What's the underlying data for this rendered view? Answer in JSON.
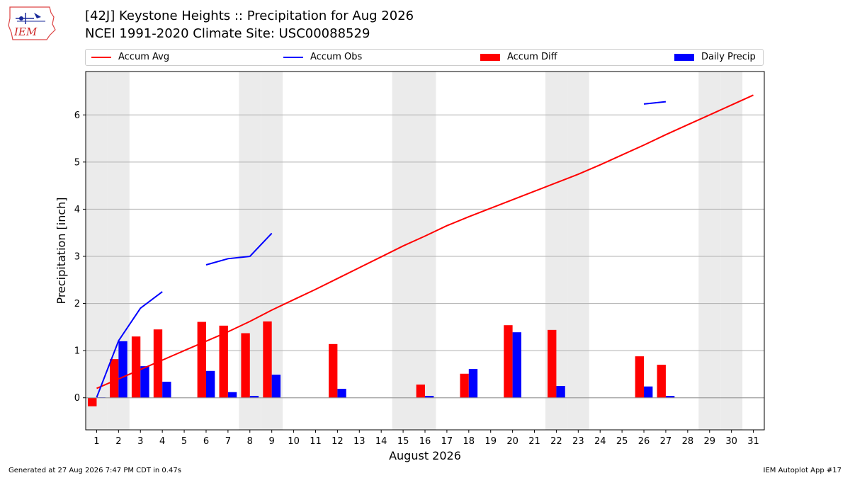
{
  "header": {
    "logo_text": "IEM",
    "title_line1": "[42J] Keystone Heights :: Precipitation for Aug 2026",
    "title_line2": "NCEI 1991-2020 Climate Site: USC00088529"
  },
  "legend": {
    "items": [
      {
        "label": "Accum Avg",
        "kind": "line",
        "color": "#ff0000"
      },
      {
        "label": "Accum Obs",
        "kind": "line",
        "color": "#0000ff"
      },
      {
        "label": "Accum Diff",
        "kind": "box",
        "color": "#ff0000"
      },
      {
        "label": "Daily Precip",
        "kind": "box",
        "color": "#0000ff"
      }
    ]
  },
  "footer": {
    "left": "Generated at 27 Aug 2026 7:47 PM CDT in 0.47s",
    "right": "IEM Autoplot App #17"
  },
  "chart_data": {
    "type": "bar",
    "title": "[42J] Keystone Heights :: Precipitation for Aug 2026",
    "subtitle": "NCEI 1991-2020 Climate Site: USC00088529",
    "xlabel": "August 2026",
    "ylabel": "Precipitation [inch]",
    "xlim": [
      0.5,
      31.5
    ],
    "ylim": [
      -0.68,
      6.92
    ],
    "yticks": [
      0,
      1,
      2,
      3,
      4,
      5,
      6
    ],
    "grid": "horizontal",
    "legend_position": "top",
    "weekend_shading_days": [
      1,
      2,
      8,
      9,
      15,
      16,
      22,
      23,
      29,
      30
    ],
    "shade_color": "#ebebeb",
    "days": [
      1,
      2,
      3,
      4,
      5,
      6,
      7,
      8,
      9,
      10,
      11,
      12,
      13,
      14,
      15,
      16,
      17,
      18,
      19,
      20,
      21,
      22,
      23,
      24,
      25,
      26,
      27,
      28,
      29,
      30,
      31
    ],
    "series": [
      {
        "name": "Accum Avg",
        "kind": "line",
        "color": "#ff0000",
        "values": [
          0.2,
          0.4,
          0.6,
          0.8,
          1.0,
          1.2,
          1.4,
          1.62,
          1.86,
          2.08,
          2.3,
          2.53,
          2.76,
          2.99,
          3.22,
          3.43,
          3.65,
          3.84,
          4.02,
          4.2,
          4.38,
          4.56,
          4.74,
          4.94,
          5.15,
          5.36,
          5.58,
          5.79,
          6.0,
          6.21,
          6.42
        ]
      },
      {
        "name": "Accum Obs",
        "kind": "line",
        "color": "#0000ff",
        "values": [
          0.01,
          1.21,
          1.9,
          2.25,
          null,
          2.82,
          2.95,
          3.0,
          3.49,
          null,
          null,
          null,
          null,
          null,
          null,
          null,
          null,
          null,
          null,
          null,
          null,
          null,
          null,
          null,
          null,
          6.23,
          6.28,
          null,
          null,
          null,
          null
        ]
      },
      {
        "name": "Accum Diff",
        "kind": "bar",
        "color": "#ff0000",
        "values": [
          -0.18,
          0.82,
          1.3,
          1.45,
          null,
          1.61,
          1.53,
          1.37,
          1.62,
          null,
          null,
          1.14,
          null,
          null,
          null,
          0.28,
          null,
          0.51,
          null,
          1.54,
          null,
          1.44,
          null,
          null,
          null,
          0.88,
          0.7,
          null,
          null,
          null,
          null
        ]
      },
      {
        "name": "Daily Precip",
        "kind": "bar",
        "color": "#0000ff",
        "values": [
          0.01,
          1.2,
          0.67,
          0.34,
          null,
          0.57,
          0.12,
          0.04,
          0.49,
          null,
          null,
          0.19,
          null,
          null,
          null,
          0.04,
          null,
          0.61,
          null,
          1.39,
          null,
          0.25,
          null,
          null,
          null,
          0.24,
          0.04,
          null,
          null,
          null,
          null
        ]
      }
    ]
  }
}
